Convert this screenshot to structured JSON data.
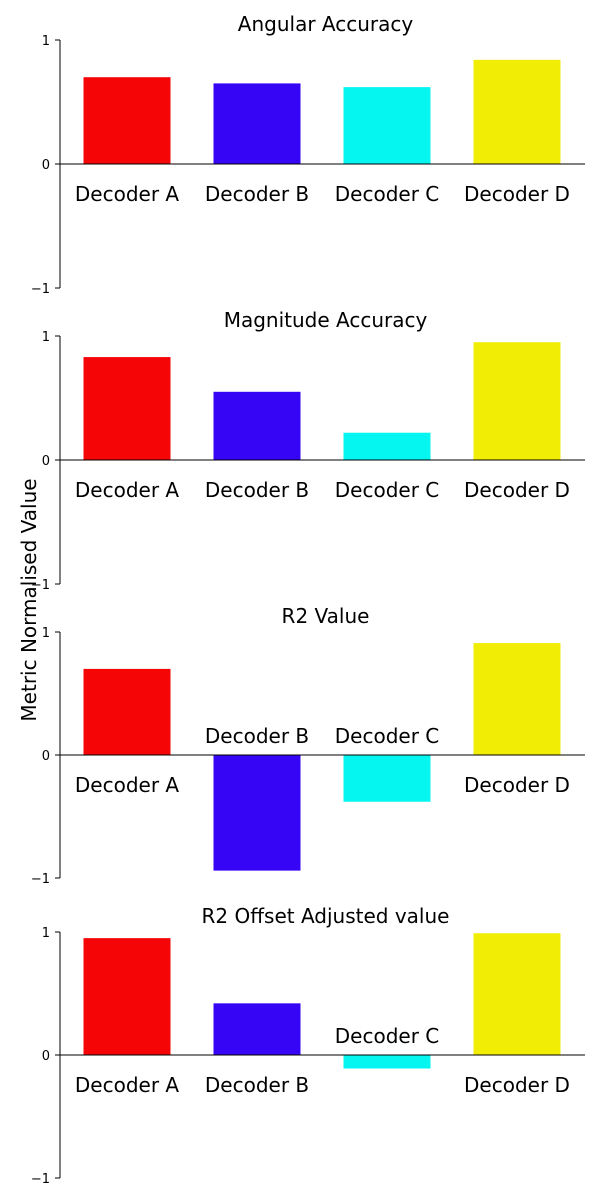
{
  "figure": {
    "ylabel": "Metric Normalised Value"
  },
  "chart_data": [
    {
      "type": "bar",
      "title": "Angular Accuracy",
      "categories": [
        "Decoder A",
        "Decoder B",
        "Decoder C",
        "Decoder D"
      ],
      "values": [
        0.7,
        0.65,
        0.62,
        0.84
      ],
      "colors": [
        "#f50505",
        "#3705f5",
        "#05f5f0",
        "#f2ed05"
      ],
      "ylim": [
        -1,
        1
      ],
      "yticks": [
        "1",
        "0",
        "−1"
      ]
    },
    {
      "type": "bar",
      "title": "Magnitude Accuracy",
      "categories": [
        "Decoder A",
        "Decoder B",
        "Decoder C",
        "Decoder D"
      ],
      "values": [
        0.83,
        0.55,
        0.22,
        0.95
      ],
      "colors": [
        "#f50505",
        "#3705f5",
        "#05f5f0",
        "#f2ed05"
      ],
      "ylim": [
        -1,
        1
      ],
      "yticks": [
        "1",
        "0",
        "−1"
      ]
    },
    {
      "type": "bar",
      "title": "R2 Value",
      "categories": [
        "Decoder A",
        "Decoder B",
        "Decoder C",
        "Decoder D"
      ],
      "values": [
        0.7,
        -0.94,
        -0.38,
        0.91
      ],
      "colors": [
        "#f50505",
        "#3705f5",
        "#05f5f0",
        "#f2ed05"
      ],
      "ylim": [
        -1,
        1
      ],
      "yticks": [
        "1",
        "0",
        "−1"
      ]
    },
    {
      "type": "bar",
      "title": "R2 Offset Adjusted value",
      "categories": [
        "Decoder A",
        "Decoder B",
        "Decoder C",
        "Decoder D"
      ],
      "values": [
        0.95,
        0.42,
        -0.11,
        0.99
      ],
      "colors": [
        "#f50505",
        "#3705f5",
        "#05f5f0",
        "#f2ed05"
      ],
      "ylim": [
        -1,
        1
      ],
      "yticks": [
        "1",
        "0",
        "−1"
      ]
    }
  ]
}
